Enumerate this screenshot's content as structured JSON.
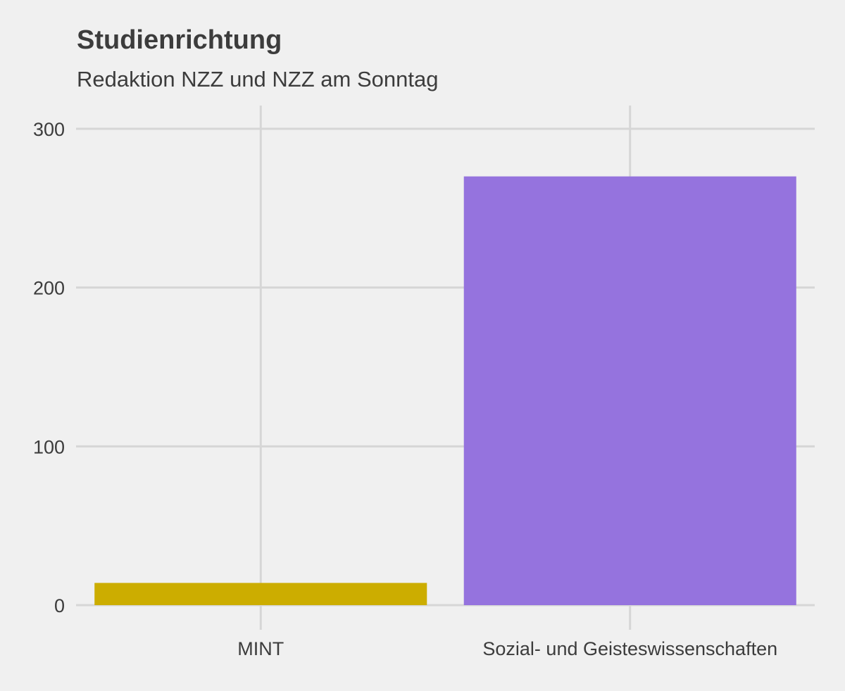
{
  "chart_data": {
    "type": "bar",
    "title": "Studienrichtung",
    "subtitle": "Redaktion NZZ und NZZ am Sonntag",
    "xlabel": "",
    "ylabel": "",
    "categories": [
      "MINT",
      "Sozial- und Geisteswissenschaften"
    ],
    "values": [
      14,
      270
    ],
    "colors": [
      "#ccad00",
      "#9573de"
    ],
    "ylim": [
      0,
      315
    ],
    "yticks": [
      0,
      100,
      200,
      300
    ],
    "grid": true,
    "legend": "none",
    "background": "#f0f0f0",
    "grid_color": "#d6d6d6"
  }
}
